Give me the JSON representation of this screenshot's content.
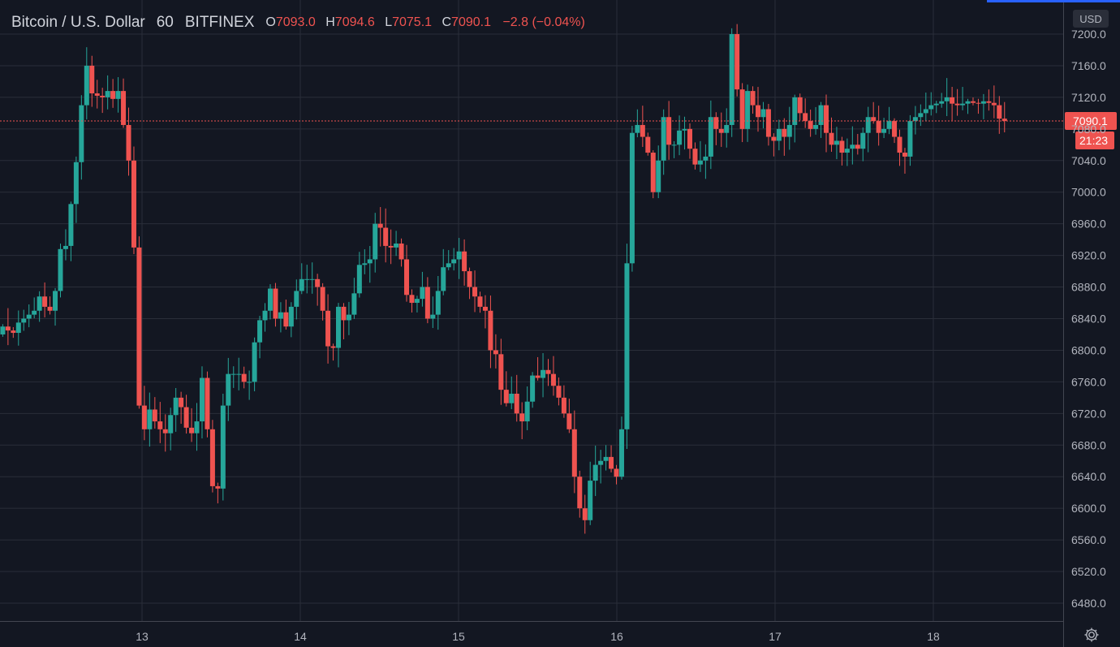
{
  "header": {
    "symbol": "Bitcoin / U.S. Dollar",
    "interval": "60",
    "exchange": "BITFINEX",
    "open_label": "O",
    "open": "7093.0",
    "high_label": "H",
    "high": "7094.6",
    "low_label": "L",
    "low": "7075.1",
    "close_label": "C",
    "close": "7090.1",
    "change": "−2.8 (−0.04%)"
  },
  "scale_button": "USD",
  "countdown": "21:23",
  "colors": {
    "up": "#26a69a",
    "down": "#ef5350",
    "background": "#131722",
    "grid": "#2a2e39",
    "price_line": "#ef5350"
  },
  "icons": {
    "settings": "gear-icon"
  },
  "chart_data": {
    "type": "candlestick",
    "title": "Bitcoin / U.S. Dollar",
    "interval": "60",
    "exchange": "BITFINEX",
    "grid": true,
    "y_ticks": [
      "6480.0",
      "6520.0",
      "6560.0",
      "6600.0",
      "6640.0",
      "6680.0",
      "6720.0",
      "6760.0",
      "6800.0",
      "6840.0",
      "6880.0",
      "6920.0",
      "6960.0",
      "7000.0",
      "7040.0",
      "7080.0",
      "7120.0",
      "7160.0",
      "7200.0"
    ],
    "ylim": [
      6460,
      7220
    ],
    "x_ticks": [
      {
        "label": "13",
        "day": 13
      },
      {
        "label": "14",
        "day": 14
      },
      {
        "label": "15",
        "day": 15
      },
      {
        "label": "16",
        "day": 16
      },
      {
        "label": "17",
        "day": 17
      },
      {
        "label": "18",
        "day": 18
      }
    ],
    "xlim": [
      12.11,
      18.83
    ],
    "last_price": "7090.1",
    "last_value": 7090.1,
    "candles_note_start_day": 12.12,
    "closes": [
      6830,
      6825,
      6822,
      6835,
      6840,
      6845,
      6850,
      6868,
      6855,
      6850,
      6875,
      6928,
      6932,
      6985,
      7038,
      7110,
      7160,
      7125,
      7122,
      7120,
      7128,
      7118,
      7128,
      7085,
      7040,
      6930,
      6730,
      6700,
      6725,
      6710,
      6700,
      6695,
      6718,
      6740,
      6728,
      6702,
      6695,
      6710,
      6765,
      6700,
      6628,
      6625,
      6730,
      6770,
      6770,
      6770,
      6760,
      6760,
      6810,
      6838,
      6850,
      6878,
      6840,
      6848,
      6830,
      6855,
      6875,
      6890,
      6890,
      6890,
      6880,
      6850,
      6805,
      6803,
      6855,
      6838,
      6845,
      6872,
      6908,
      6910,
      6915,
      6960,
      6955,
      6932,
      6930,
      6935,
      6915,
      6870,
      6860,
      6865,
      6880,
      6840,
      6845,
      6875,
      6905,
      6910,
      6915,
      6925,
      6900,
      6880,
      6868,
      6855,
      6850,
      6800,
      6795,
      6750,
      6733,
      6745,
      6720,
      6710,
      6735,
      6768,
      6765,
      6775,
      6770,
      6755,
      6740,
      6720,
      6700,
      6640,
      6600,
      6585,
      6635,
      6655,
      6660,
      6665,
      6650,
      6640,
      6700,
      6910,
      7075,
      7085,
      7070,
      7050,
      7000,
      7040,
      7095,
      7060,
      7060,
      7078,
      7080,
      7055,
      7035,
      7040,
      7045,
      7095,
      7080,
      7075,
      7085,
      7200,
      7130,
      7080,
      7128,
      7110,
      7095,
      7105,
      7070,
      7065,
      7080,
      7070,
      7085,
      7120,
      7100,
      7090,
      7080,
      7085,
      7110,
      7075,
      7060,
      7065,
      7050,
      7055,
      7060,
      7055,
      7075,
      7095,
      7090,
      7075,
      7080,
      7090,
      7070,
      7050,
      7045,
      7090,
      7095,
      7100,
      7105,
      7110,
      7112,
      7115,
      7120,
      7112,
      7110,
      7112,
      7115,
      7113,
      7112,
      7115,
      7113,
      7110,
      7093,
      7090
    ]
  }
}
